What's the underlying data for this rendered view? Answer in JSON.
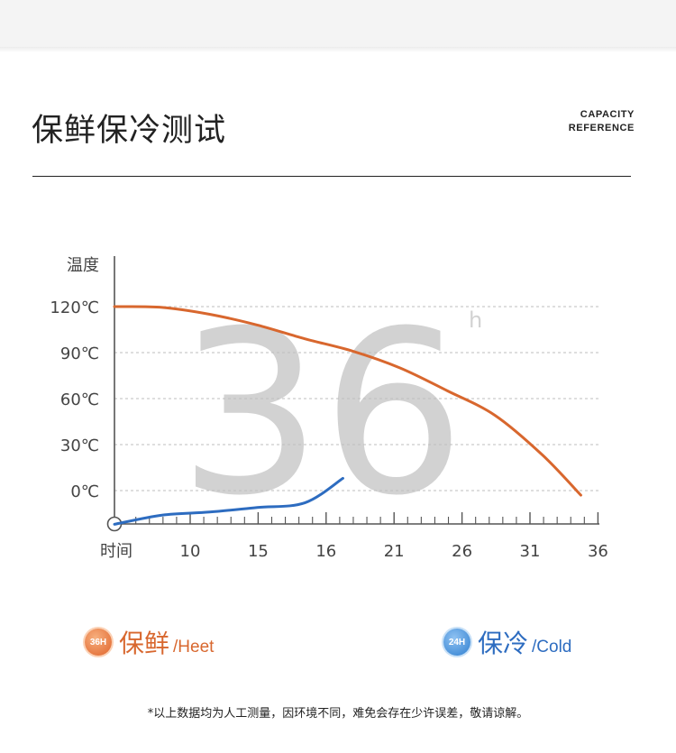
{
  "header": {
    "title": "保鲜保冷测试",
    "capacity_line1": "CAPACITY",
    "capacity_line2": "REFERENCE"
  },
  "chart_data": {
    "type": "line",
    "ylabel": "温度",
    "xlabel": "时间",
    "y_ticks": [
      "120℃",
      "90℃",
      "60℃",
      "30℃",
      "0℃"
    ],
    "y_tick_values": [
      120,
      90,
      60,
      30,
      0
    ],
    "x_ticks": [
      "10",
      "15",
      "16",
      "21",
      "26",
      "31",
      "36"
    ],
    "big_number": "36",
    "big_unit": "h",
    "grid": "horizontal-dashed",
    "colors": {
      "heat": "#d8672e",
      "cold": "#2d6cc0",
      "axis": "#555555",
      "grid": "#bdbdbd",
      "watermark": "#d2d2d2"
    },
    "series": [
      {
        "name": "保鲜",
        "key": "heat",
        "x": [
          0,
          1,
          2,
          3,
          4,
          5,
          6,
          7,
          8,
          9,
          9.8
        ],
        "y": [
          120,
          119.5,
          115,
          108,
          99,
          91,
          80,
          65,
          49,
          23,
          -3
        ]
      },
      {
        "name": "保冷",
        "key": "cold",
        "x": [
          0,
          1,
          2,
          3,
          4,
          4.8
        ],
        "y": [
          -22,
          -16,
          -14,
          -11,
          -8,
          8
        ]
      }
    ]
  },
  "legend": {
    "heat": {
      "badge": "36H",
      "label": "保鲜",
      "sub": "/Heet"
    },
    "cold": {
      "badge": "24H",
      "label": "保冷",
      "sub": "/Cold"
    }
  },
  "footnote": "*以上数据均为人工测量，因环境不同，难免会存在少许误差，敬请谅解。"
}
